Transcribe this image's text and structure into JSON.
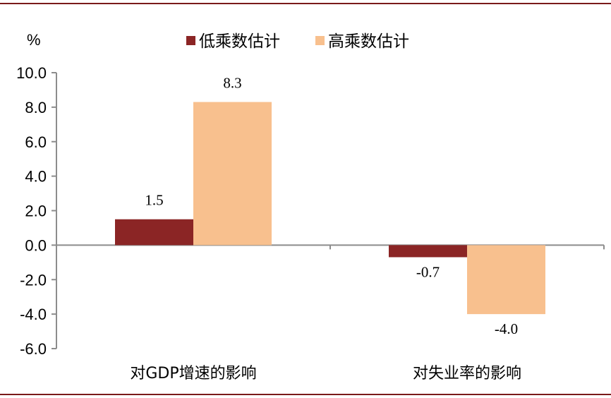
{
  "chart_data": {
    "type": "bar",
    "unit_label": "%",
    "categories": [
      "对GDP增速的影响",
      "对失业率的影响"
    ],
    "series": [
      {
        "name": "低乘数估计",
        "values": [
          1.5,
          -0.7
        ],
        "color": "#8b2525"
      },
      {
        "name": "高乘数估计",
        "values": [
          8.3,
          -4.0
        ],
        "color": "#f8c08e"
      }
    ],
    "data_labels": [
      [
        "1.5",
        "-0.7"
      ],
      [
        "8.3",
        "-4.0"
      ]
    ],
    "ylim": [
      -6,
      10
    ],
    "y_ticks": [
      "10.0",
      "8.0",
      "6.0",
      "4.0",
      "2.0",
      "0.0",
      "-2.0",
      "-4.0",
      "-6.0"
    ],
    "legend_position": "top",
    "grid": false,
    "frame_rule_color": "#7a1a1a"
  }
}
